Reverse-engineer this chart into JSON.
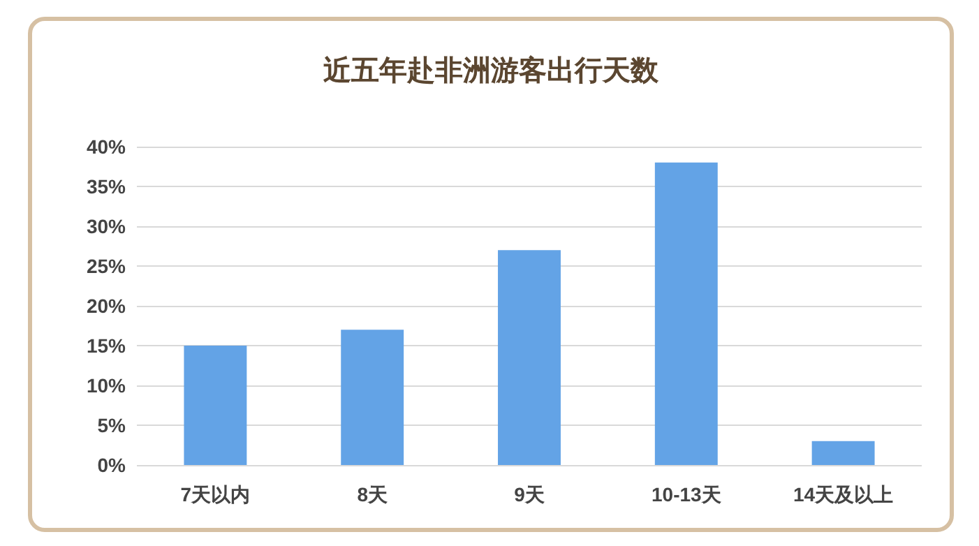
{
  "chart_data": {
    "type": "bar",
    "title": "近五年赴非洲游客出行天数",
    "categories": [
      "7天以内",
      "8天",
      "9天",
      "10-13天",
      "14天及以上"
    ],
    "values": [
      15,
      17,
      27,
      38,
      3
    ],
    "color": "#63a3e6",
    "ylim": [
      0,
      40
    ],
    "yticks": [
      {
        "value": 0,
        "label": "0%"
      },
      {
        "value": 5,
        "label": "5%"
      },
      {
        "value": 10,
        "label": "10%"
      },
      {
        "value": 15,
        "label": "15%"
      },
      {
        "value": 20,
        "label": "20%"
      },
      {
        "value": 25,
        "label": "25%"
      },
      {
        "value": 30,
        "label": "30%"
      },
      {
        "value": 35,
        "label": "35%"
      },
      {
        "value": 40,
        "label": "40%"
      }
    ],
    "grid": "y"
  }
}
